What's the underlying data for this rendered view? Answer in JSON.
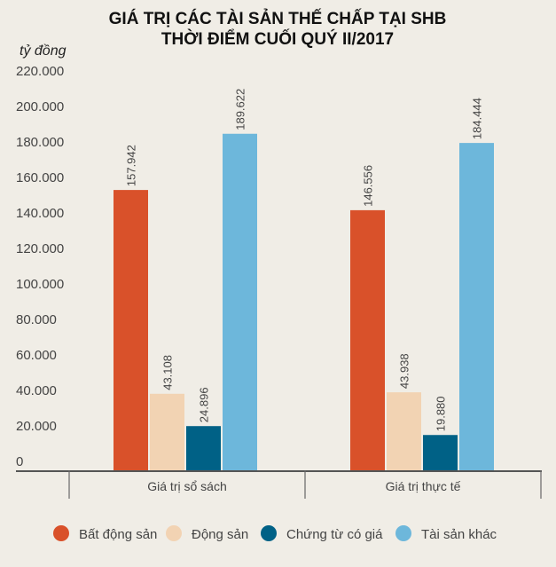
{
  "chart_data": {
    "type": "bar",
    "title": "GIÁ TRỊ CÁC TÀI SẢN THẾ CHẤP TẠI SHB",
    "subtitle": "THỜI ĐIỂM CUỐI QUÝ II/2017",
    "ylabel": "tỷ đồng",
    "xlabel": "",
    "ylim": [
      0,
      220000
    ],
    "yticks": [
      0,
      20000,
      40000,
      60000,
      80000,
      100000,
      120000,
      140000,
      160000,
      180000,
      200000,
      220000
    ],
    "ytick_labels": [
      "0",
      "20.000",
      "40.000",
      "60.000",
      "80.000",
      "100.000",
      "120.000",
      "140.000",
      "160.000",
      "180.000",
      "200.000",
      "220.000"
    ],
    "grid": false,
    "legend_position": "bottom",
    "categories": [
      "Giá trị sổ sách",
      "Giá trị thực tế"
    ],
    "series": [
      {
        "name": "Bất động sản",
        "color": "#D9512A",
        "values": [
          157942,
          146556
        ],
        "labels": [
          "157.942",
          "146.556"
        ]
      },
      {
        "name": "Động sản",
        "color": "#F2D3B3",
        "values": [
          43108,
          43938
        ],
        "labels": [
          "43.108",
          "43.938"
        ]
      },
      {
        "name": "Chứng từ có giá",
        "color": "#006186",
        "values": [
          24896,
          19880
        ],
        "labels": [
          "24.896",
          "19.880"
        ]
      },
      {
        "name": "Tài sản khác",
        "color": "#6DB7DB",
        "values": [
          189622,
          184444
        ],
        "labels": [
          "189.622",
          "184.444"
        ]
      }
    ]
  }
}
